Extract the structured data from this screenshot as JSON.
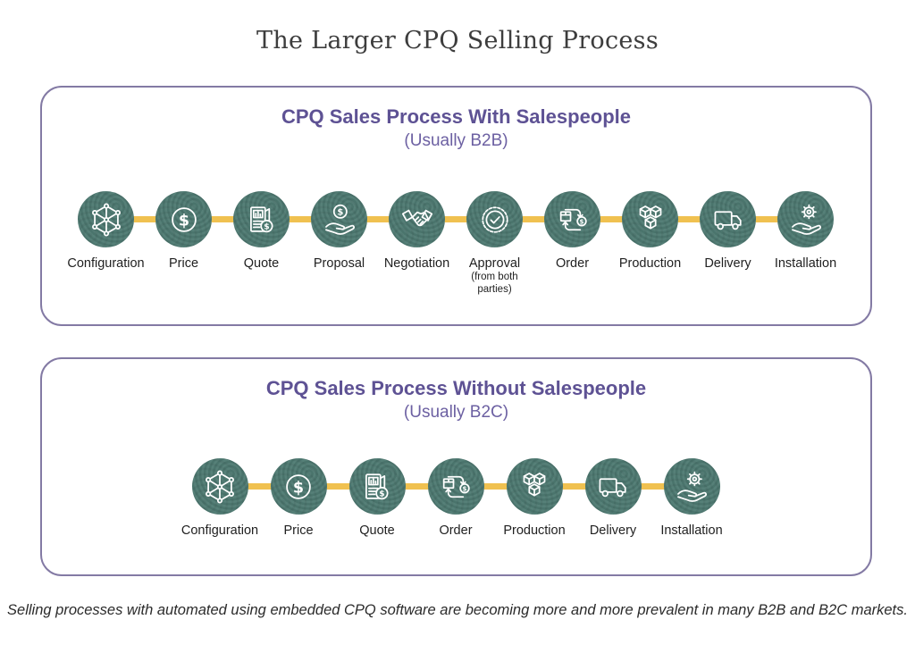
{
  "page": {
    "title": "The Larger CPQ Selling Process",
    "footnote": "Selling processes with automated using embedded CPQ software are becoming more and more prevalent in many B2B and B2C markets."
  },
  "colors": {
    "circle_teal": "#4e7a72",
    "connector_gold": "#f0c150",
    "heading_purple": "#5e5294",
    "subtitle_purple": "#6c60a2",
    "panel_border": "#837aa4",
    "label_ink": "#212121"
  },
  "panels": [
    {
      "title": "CPQ Sales Process With Salespeople",
      "subtitle": "(Usually B2B)",
      "steps": [
        {
          "label": "Configuration",
          "icon": "network-cube-icon"
        },
        {
          "label": "Price",
          "icon": "dollar-circle-icon"
        },
        {
          "label": "Quote",
          "icon": "quote-document-icon"
        },
        {
          "label": "Proposal",
          "icon": "hand-dollar-icon"
        },
        {
          "label": "Negotiation",
          "icon": "handshake-icon"
        },
        {
          "label": "Approval",
          "sublabel": "(from both parties)",
          "icon": "approval-badge-icon"
        },
        {
          "label": "Order",
          "icon": "order-cycle-icon"
        },
        {
          "label": "Production",
          "icon": "cubes-icon"
        },
        {
          "label": "Delivery",
          "icon": "truck-icon"
        },
        {
          "label": "Installation",
          "icon": "hand-gear-icon"
        }
      ]
    },
    {
      "title": "CPQ Sales Process Without Salespeople",
      "subtitle": "(Usually B2C)",
      "steps": [
        {
          "label": "Configuration",
          "icon": "network-cube-icon"
        },
        {
          "label": "Price",
          "icon": "dollar-circle-icon"
        },
        {
          "label": "Quote",
          "icon": "quote-document-icon"
        },
        {
          "label": "Order",
          "icon": "order-cycle-icon"
        },
        {
          "label": "Production",
          "icon": "cubes-icon"
        },
        {
          "label": "Delivery",
          "icon": "truck-icon"
        },
        {
          "label": "Installation",
          "icon": "hand-gear-icon"
        }
      ]
    }
  ]
}
